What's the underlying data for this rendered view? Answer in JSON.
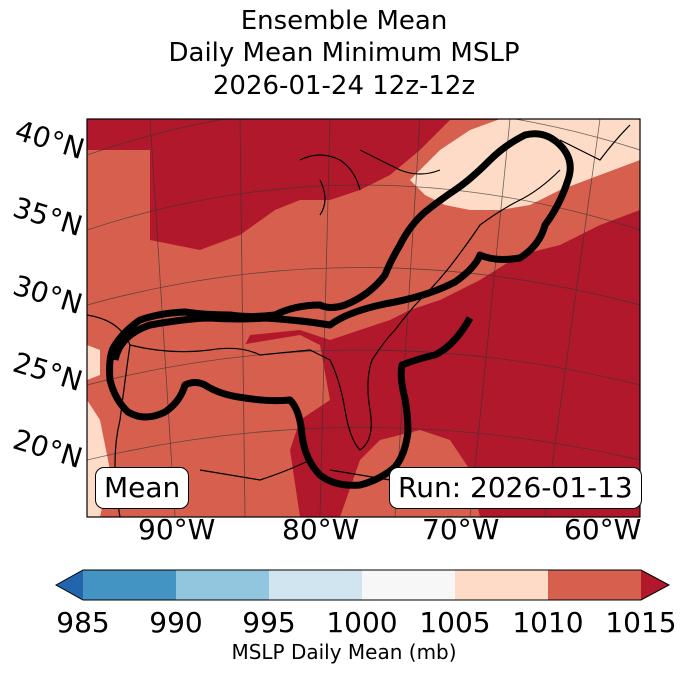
{
  "title_lines": [
    "Ensemble Mean",
    "Daily Mean Minimum MSLP",
    "2026-01-24 12z-12z"
  ],
  "lat_labels": [
    "40°N",
    "35°N",
    "30°N",
    "25°N",
    "20°N"
  ],
  "lon_labels": [
    "90°W",
    "80°W",
    "70°W",
    "60°W"
  ],
  "mean_box": "Mean",
  "run_box": "Run: 2026-01-13",
  "colorbar": {
    "label": "MSLP Daily Mean (mb)",
    "ticks": [
      "985",
      "990",
      "995",
      "1000",
      "1005",
      "1010",
      "1015"
    ],
    "colors": [
      "#2166ac",
      "#4393c3",
      "#92c5de",
      "#d1e5f0",
      "#f7f7f7",
      "#fddbc7",
      "#d6604d",
      "#b2182b"
    ]
  }
}
